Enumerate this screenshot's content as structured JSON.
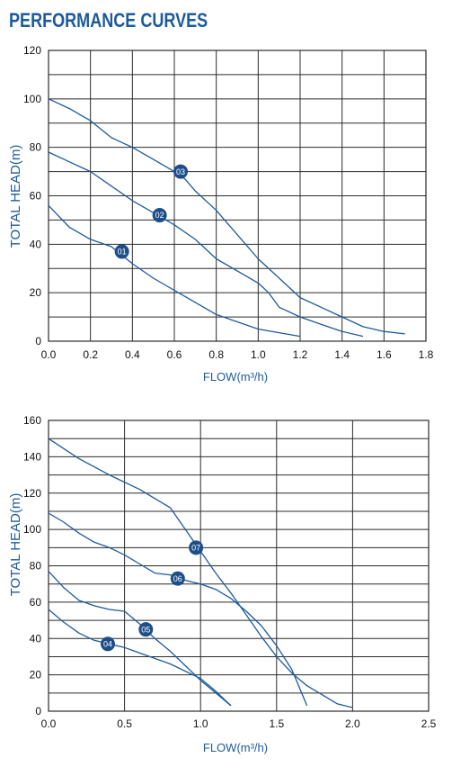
{
  "page_title": "PERFORMANCE CURVES",
  "colors": {
    "curve": "#1c5a9c",
    "grid": "#2b2b2b",
    "marker": "#1c4f8a",
    "text": "#111111"
  },
  "chart_data": [
    {
      "type": "line",
      "xlabel": "FLOW(m³/h)",
      "ylabel": "TOTAL HEAD(m)",
      "xlim": [
        0,
        1.8
      ],
      "ylim": [
        0,
        120
      ],
      "x_ticks": [
        "0.0",
        "0.2",
        "0.4",
        "0.6",
        "0.8",
        "1.0",
        "1.2",
        "1.4",
        "1.6",
        "1.8"
      ],
      "y_ticks": [
        "0",
        "20",
        "40",
        "60",
        "80",
        "100",
        "120"
      ],
      "grid": true,
      "series": [
        {
          "name": "01",
          "label_at": [
            0.35,
            37
          ],
          "points": [
            [
              0.0,
              56
            ],
            [
              0.1,
              47
            ],
            [
              0.2,
              42
            ],
            [
              0.3,
              39
            ],
            [
              0.4,
              32
            ],
            [
              0.5,
              26
            ],
            [
              0.6,
              21
            ],
            [
              0.7,
              16
            ],
            [
              0.8,
              11
            ],
            [
              0.9,
              8
            ],
            [
              1.0,
              5
            ],
            [
              1.1,
              3.5
            ],
            [
              1.2,
              2
            ]
          ]
        },
        {
          "name": "02",
          "label_at": [
            0.53,
            52
          ],
          "points": [
            [
              0.0,
              78
            ],
            [
              0.1,
              74
            ],
            [
              0.2,
              70
            ],
            [
              0.3,
              64
            ],
            [
              0.4,
              58
            ],
            [
              0.5,
              53
            ],
            [
              0.6,
              48
            ],
            [
              0.7,
              42
            ],
            [
              0.8,
              34
            ],
            [
              0.9,
              29
            ],
            [
              1.0,
              24
            ],
            [
              1.05,
              20
            ],
            [
              1.1,
              14
            ],
            [
              1.2,
              10
            ],
            [
              1.3,
              7
            ],
            [
              1.4,
              4
            ],
            [
              1.5,
              2
            ]
          ]
        },
        {
          "name": "03",
          "label_at": [
            0.63,
            70
          ],
          "points": [
            [
              0.0,
              100
            ],
            [
              0.1,
              96
            ],
            [
              0.2,
              91
            ],
            [
              0.3,
              84
            ],
            [
              0.4,
              80
            ],
            [
              0.5,
              75
            ],
            [
              0.6,
              70
            ],
            [
              0.65,
              67
            ],
            [
              0.7,
              62
            ],
            [
              0.8,
              54
            ],
            [
              0.9,
              44
            ],
            [
              1.0,
              34
            ],
            [
              1.1,
              26
            ],
            [
              1.2,
              18
            ],
            [
              1.3,
              14
            ],
            [
              1.4,
              10
            ],
            [
              1.5,
              6
            ],
            [
              1.6,
              4
            ],
            [
              1.7,
              3
            ]
          ]
        }
      ]
    },
    {
      "type": "line",
      "xlabel": "FLOW(m³/h)",
      "ylabel": "TOTAL HEAD(m)",
      "xlim": [
        0,
        2.5
      ],
      "ylim": [
        0,
        160
      ],
      "x_ticks": [
        "0.0",
        "0.5",
        "1.0",
        "1.5",
        "2.0",
        "2.5"
      ],
      "y_ticks": [
        "0",
        "20",
        "40",
        "60",
        "80",
        "100",
        "120",
        "140",
        "160"
      ],
      "grid": true,
      "series": [
        {
          "name": "04",
          "label_at": [
            0.39,
            37
          ],
          "points": [
            [
              0.0,
              56
            ],
            [
              0.1,
              49
            ],
            [
              0.2,
              43
            ],
            [
              0.3,
              39
            ],
            [
              0.4,
              37
            ],
            [
              0.5,
              35
            ],
            [
              0.6,
              32
            ],
            [
              0.8,
              26
            ],
            [
              1.0,
              18
            ],
            [
              1.1,
              11
            ],
            [
              1.2,
              3
            ]
          ]
        },
        {
          "name": "05",
          "label_at": [
            0.64,
            45
          ],
          "points": [
            [
              0.0,
              77
            ],
            [
              0.1,
              68
            ],
            [
              0.2,
              61
            ],
            [
              0.3,
              58
            ],
            [
              0.4,
              56
            ],
            [
              0.5,
              55
            ],
            [
              0.6,
              48
            ],
            [
              0.7,
              40
            ],
            [
              0.8,
              33
            ],
            [
              0.9,
              25
            ],
            [
              1.0,
              17
            ],
            [
              1.1,
              10
            ],
            [
              1.2,
              3
            ]
          ]
        },
        {
          "name": "06",
          "label_at": [
            0.85,
            73
          ],
          "points": [
            [
              0.0,
              109
            ],
            [
              0.1,
              104
            ],
            [
              0.2,
              98
            ],
            [
              0.3,
              93
            ],
            [
              0.4,
              90
            ],
            [
              0.5,
              86
            ],
            [
              0.6,
              81
            ],
            [
              0.7,
              76
            ],
            [
              0.8,
              75
            ],
            [
              0.9,
              72
            ],
            [
              1.0,
              70
            ],
            [
              1.1,
              67
            ],
            [
              1.2,
              62
            ],
            [
              1.3,
              55
            ],
            [
              1.4,
              47
            ],
            [
              1.5,
              36
            ],
            [
              1.6,
              23
            ],
            [
              1.7,
              3
            ]
          ]
        },
        {
          "name": "07",
          "label_at": [
            0.97,
            90
          ],
          "points": [
            [
              0.0,
              150
            ],
            [
              0.2,
              139
            ],
            [
              0.4,
              130
            ],
            [
              0.6,
              122
            ],
            [
              0.7,
              117
            ],
            [
              0.8,
              112
            ],
            [
              0.9,
              100
            ],
            [
              1.0,
              88
            ],
            [
              1.1,
              76
            ],
            [
              1.2,
              65
            ],
            [
              1.3,
              53
            ],
            [
              1.4,
              41
            ],
            [
              1.5,
              30
            ],
            [
              1.6,
              21
            ],
            [
              1.7,
              14
            ],
            [
              1.8,
              9
            ],
            [
              1.9,
              4
            ],
            [
              2.0,
              2
            ]
          ]
        }
      ]
    }
  ]
}
